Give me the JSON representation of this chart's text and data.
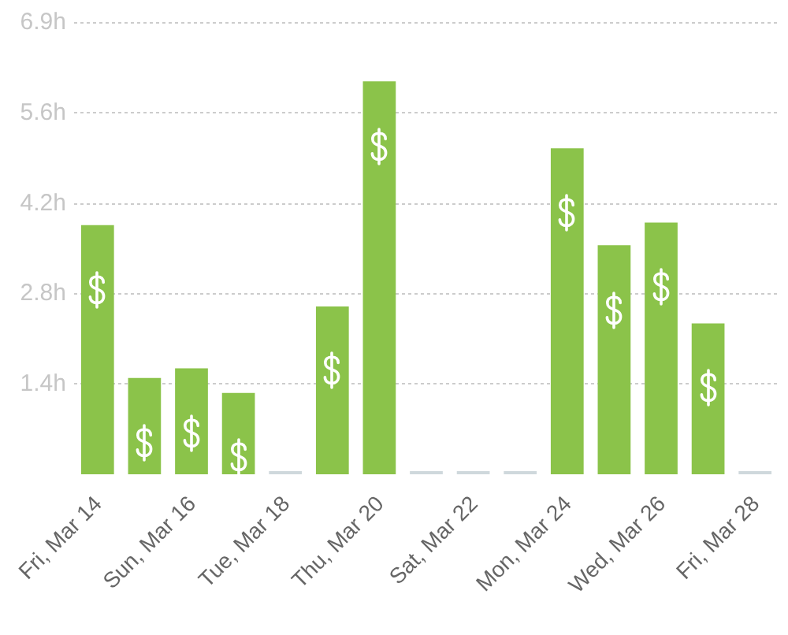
{
  "chart_data": {
    "type": "bar",
    "categories": [
      "Fri, Mar 14",
      null,
      "Sun, Mar 16",
      null,
      "Tue, Mar 18",
      null,
      "Thu, Mar 20",
      null,
      "Sat, Mar 22",
      null,
      "Mon, Mar 24",
      null,
      "Wed, Mar 26",
      null,
      "Fri, Mar 28"
    ],
    "values": [
      3.83,
      1.48,
      1.63,
      1.25,
      0,
      2.58,
      6.04,
      0,
      0,
      0,
      5.01,
      3.52,
      3.87,
      2.32,
      0
    ],
    "colors": [
      "#8bc34a",
      "#8bc34a",
      "#8bc34a",
      "#8bc34a",
      "#cfd8dc",
      "#8bc34a",
      "#8bc34a",
      "#cfd8dc",
      "#cfd8dc",
      "#cfd8dc",
      "#8bc34a",
      "#8bc34a",
      "#8bc34a",
      "#8bc34a",
      "#cfd8dc"
    ],
    "ylim": [
      0,
      6.95
    ],
    "yticks": [
      {
        "value": 1.39,
        "label": "1.4h"
      },
      {
        "value": 2.78,
        "label": "2.8h"
      },
      {
        "value": 4.17,
        "label": "4.2h"
      },
      {
        "value": 5.56,
        "label": "5.6h"
      },
      {
        "value": 6.95,
        "label": "6.9h"
      }
    ],
    "grid": "y"
  }
}
